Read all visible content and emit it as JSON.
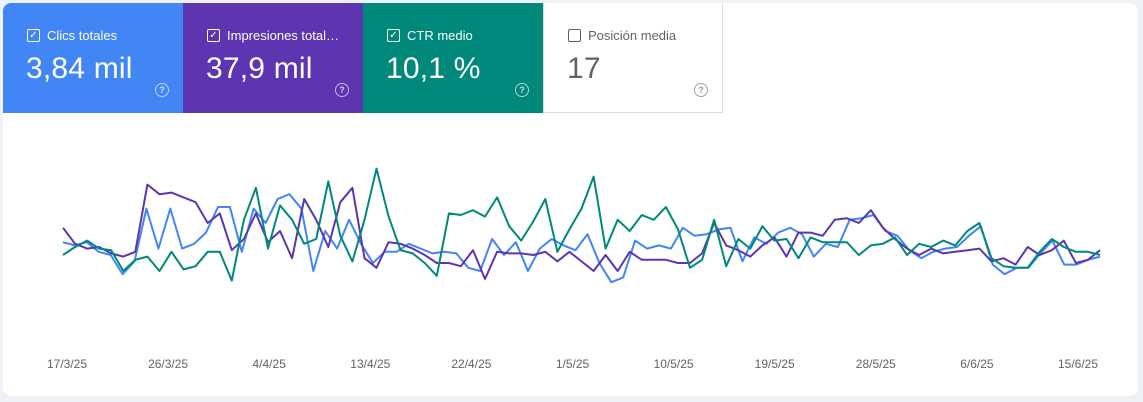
{
  "metrics": [
    {
      "label": "Clics totales",
      "value": "3,84 mil",
      "checked": true,
      "color": "#4285f4"
    },
    {
      "label": "Impresiones total…",
      "value": "37,9 mil",
      "checked": true,
      "color": "#5e35b1"
    },
    {
      "label": "CTR medio",
      "value": "10,1 %",
      "checked": true,
      "color": "#00897b"
    },
    {
      "label": "Posición media",
      "value": "17",
      "checked": false,
      "color": "#ffffff"
    }
  ],
  "chart_data": {
    "type": "line",
    "x_tick_labels": [
      "17/3/25",
      "26/3/25",
      "4/4/25",
      "13/4/25",
      "22/4/25",
      "1/5/25",
      "10/5/25",
      "19/5/25",
      "28/5/25",
      "6/6/25",
      "15/6/25"
    ],
    "grid": false,
    "legend": "none",
    "y_axis_visible": false,
    "series": [
      {
        "color": "#4285f4",
        "values": [
          0.38,
          0.36,
          0.38,
          0.32,
          0.3,
          0.18,
          0.26,
          0.59,
          0.34,
          0.59,
          0.34,
          0.37,
          0.44,
          0.6,
          0.6,
          0.32,
          0.59,
          0.5,
          0.65,
          0.68,
          0.59,
          0.2,
          0.45,
          0.34,
          0.52,
          0.37,
          0.25,
          0.32,
          0.32,
          0.37,
          0.34,
          0.31,
          0.32,
          0.31,
          0.22,
          0.2,
          0.4,
          0.3,
          0.38,
          0.2,
          0.34,
          0.4,
          0.36,
          0.33,
          0.43,
          0.25,
          0.13,
          0.16,
          0.39,
          0.34,
          0.36,
          0.34,
          0.47,
          0.42,
          0.43,
          0.46,
          0.47,
          0.26,
          0.41,
          0.37,
          0.44,
          0.47,
          0.43,
          0.29,
          0.37,
          0.35,
          0.52,
          0.53,
          0.55,
          0.45,
          0.42,
          0.33,
          0.28,
          0.32,
          0.34,
          0.35,
          0.42,
          0.48,
          0.24,
          0.18,
          0.22,
          0.22,
          0.31,
          0.39,
          0.24,
          0.24,
          0.27,
          0.29
        ]
      },
      {
        "color": "#5e35b1",
        "values": [
          0.47,
          0.37,
          0.34,
          0.35,
          0.31,
          0.29,
          0.32,
          0.74,
          0.68,
          0.69,
          0.66,
          0.63,
          0.5,
          0.56,
          0.33,
          0.4,
          0.56,
          0.38,
          0.45,
          0.28,
          0.65,
          0.52,
          0.35,
          0.63,
          0.72,
          0.28,
          0.22,
          0.38,
          0.37,
          0.34,
          0.3,
          0.25,
          0.25,
          0.23,
          0.33,
          0.15,
          0.32,
          0.31,
          0.31,
          0.3,
          0.32,
          0.26,
          0.32,
          0.26,
          0.2,
          0.3,
          0.2,
          0.32,
          0.27,
          0.27,
          0.27,
          0.25,
          0.25,
          0.31,
          0.5,
          0.36,
          0.33,
          0.29,
          0.36,
          0.41,
          0.29,
          0.44,
          0.44,
          0.42,
          0.52,
          0.53,
          0.5,
          0.58,
          0.47,
          0.4,
          0.34,
          0.3,
          0.34,
          0.31,
          0.32,
          0.33,
          0.34,
          0.26,
          0.28,
          0.24,
          0.35,
          0.3,
          0.33,
          0.39,
          0.25,
          0.27,
          0.33
        ]
      },
      {
        "color": "#00897b",
        "values": [
          0.3,
          0.35,
          0.39,
          0.34,
          0.33,
          0.2,
          0.27,
          0.29,
          0.2,
          0.32,
          0.21,
          0.23,
          0.32,
          0.32,
          0.14,
          0.52,
          0.72,
          0.34,
          0.61,
          0.52,
          0.37,
          0.4,
          0.76,
          0.42,
          0.26,
          0.52,
          0.84,
          0.54,
          0.33,
          0.31,
          0.25,
          0.17,
          0.56,
          0.55,
          0.58,
          0.54,
          0.66,
          0.48,
          0.39,
          0.51,
          0.65,
          0.32,
          0.46,
          0.59,
          0.79,
          0.34,
          0.52,
          0.45,
          0.55,
          0.52,
          0.6,
          0.46,
          0.22,
          0.27,
          0.52,
          0.23,
          0.4,
          0.34,
          0.48,
          0.39,
          0.4,
          0.28,
          0.41,
          0.38,
          0.38,
          0.38,
          0.3,
          0.36,
          0.37,
          0.41,
          0.3,
          0.37,
          0.35,
          0.39,
          0.36,
          0.45,
          0.5,
          0.28,
          0.23,
          0.22,
          0.22,
          0.32,
          0.4,
          0.35,
          0.32,
          0.32,
          0.3
        ]
      }
    ]
  }
}
